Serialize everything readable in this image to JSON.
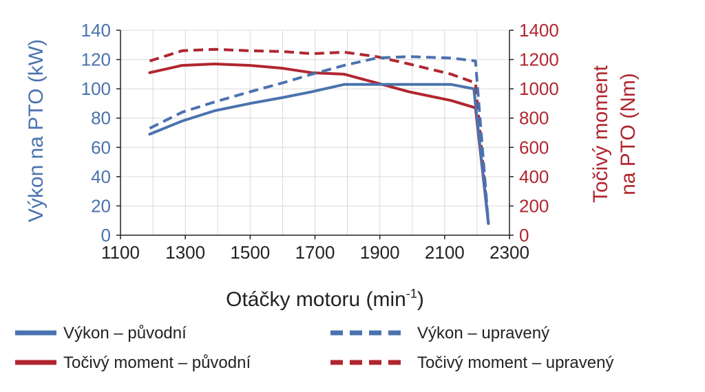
{
  "chart_data": {
    "type": "line",
    "xlabel": "Otáčky motoru (min",
    "xlabel_sup": "-1",
    "xlabel_suffix": ")",
    "ylabel_left": "Výkon na PTO (kW)",
    "ylabel_right_line1": "Točivý moment",
    "ylabel_right_line2": "na PTO (Nm)",
    "xlim": [
      1100,
      2300
    ],
    "ylim_left": [
      0,
      140
    ],
    "ylim_right": [
      0,
      1400
    ],
    "x_ticks": [
      "1100",
      "1300",
      "1500",
      "1700",
      "1900",
      "2100",
      "2300"
    ],
    "y_ticks_left": [
      "0",
      "20",
      "40",
      "60",
      "80",
      "100",
      "120",
      "140"
    ],
    "y_ticks_right": [
      "0",
      "200",
      "400",
      "600",
      "800",
      "1000",
      "1200",
      "1400"
    ],
    "grid": true,
    "legend_position": "bottom",
    "series": [
      {
        "name": "Výkon – původní",
        "axis": "left",
        "color": "#4a72ae",
        "style": "solid",
        "points": [
          [
            1190,
            69
          ],
          [
            1290,
            78
          ],
          [
            1390,
            85
          ],
          [
            1500,
            90
          ],
          [
            1600,
            94
          ],
          [
            1690,
            98
          ],
          [
            1790,
            103
          ],
          [
            1890,
            103
          ],
          [
            1990,
            103
          ],
          [
            2120,
            103
          ],
          [
            2190,
            100
          ],
          [
            2235,
            8
          ]
        ]
      },
      {
        "name": "Výkon – upravený",
        "axis": "left",
        "color": "#4a72ae",
        "style": "dashed",
        "points": [
          [
            1190,
            73
          ],
          [
            1290,
            84
          ],
          [
            1390,
            91
          ],
          [
            1500,
            98
          ],
          [
            1600,
            104
          ],
          [
            1690,
            110
          ],
          [
            1790,
            116
          ],
          [
            1890,
            121
          ],
          [
            1990,
            122
          ],
          [
            2120,
            121
          ],
          [
            2195,
            119
          ],
          [
            2235,
            8
          ]
        ]
      },
      {
        "name": "Točivý moment – původní",
        "axis": "right",
        "color": "#b0262f",
        "style": "solid",
        "points": [
          [
            1190,
            1110
          ],
          [
            1290,
            1160
          ],
          [
            1390,
            1170
          ],
          [
            1500,
            1160
          ],
          [
            1600,
            1140
          ],
          [
            1690,
            1110
          ],
          [
            1790,
            1100
          ],
          [
            1890,
            1040
          ],
          [
            1990,
            980
          ],
          [
            2120,
            920
          ],
          [
            2195,
            870
          ],
          [
            2235,
            80
          ]
        ]
      },
      {
        "name": "Točivý moment – upravený",
        "axis": "right",
        "color": "#b0262f",
        "style": "dashed",
        "points": [
          [
            1190,
            1190
          ],
          [
            1290,
            1260
          ],
          [
            1390,
            1270
          ],
          [
            1500,
            1260
          ],
          [
            1600,
            1255
          ],
          [
            1690,
            1240
          ],
          [
            1790,
            1250
          ],
          [
            1890,
            1220
          ],
          [
            1990,
            1170
          ],
          [
            2120,
            1100
          ],
          [
            2195,
            1040
          ],
          [
            2235,
            80
          ]
        ]
      }
    ]
  }
}
